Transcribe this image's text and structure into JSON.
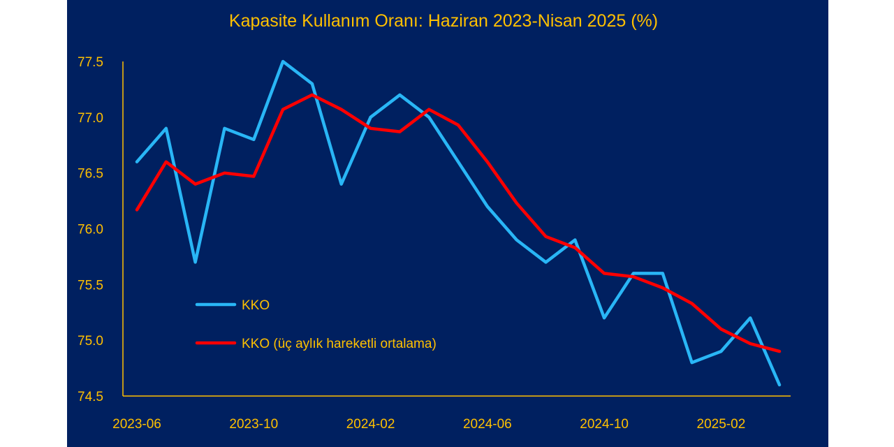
{
  "chart_data": {
    "type": "line",
    "title": "Kapasite Kullanım Oranı: Haziran 2023-Nisan 2025 (%)",
    "xlabel": "",
    "ylabel": "",
    "ylim": [
      74.5,
      77.5
    ],
    "yticks": [
      "74.5",
      "75.0",
      "75.5",
      "76.0",
      "76.5",
      "77.0",
      "77.5"
    ],
    "x": [
      "2023-06",
      "2023-07",
      "2023-08",
      "2023-09",
      "2023-10",
      "2023-11",
      "2023-12",
      "2024-01",
      "2024-02",
      "2024-03",
      "2024-04",
      "2024-05",
      "2024-06",
      "2024-07",
      "2024-08",
      "2024-09",
      "2024-10",
      "2024-11",
      "2024-12",
      "2025-01",
      "2025-02",
      "2025-03",
      "2025-04"
    ],
    "xtick_labels": [
      "2023-06",
      "2023-10",
      "2024-02",
      "2024-06",
      "2024-10",
      "2025-02"
    ],
    "grid": false,
    "legend_position": "lower-left",
    "series": [
      {
        "name": "KKO",
        "color": "#29b6f6",
        "values": [
          76.6,
          76.9,
          75.7,
          76.9,
          76.8,
          77.5,
          77.3,
          76.4,
          77.0,
          77.2,
          77.0,
          76.6,
          76.2,
          75.9,
          75.7,
          75.9,
          75.2,
          75.6,
          75.6,
          74.8,
          74.9,
          75.2,
          74.6
        ]
      },
      {
        "name": "KKO (üç aylık hareketli ortalama)",
        "color": "#ff0000",
        "values": [
          76.17,
          76.6,
          76.4,
          76.5,
          76.47,
          77.07,
          77.2,
          77.07,
          76.9,
          76.87,
          77.07,
          76.93,
          76.6,
          76.23,
          75.93,
          75.83,
          75.6,
          75.57,
          75.47,
          75.33,
          75.1,
          74.97,
          74.9
        ]
      }
    ]
  }
}
